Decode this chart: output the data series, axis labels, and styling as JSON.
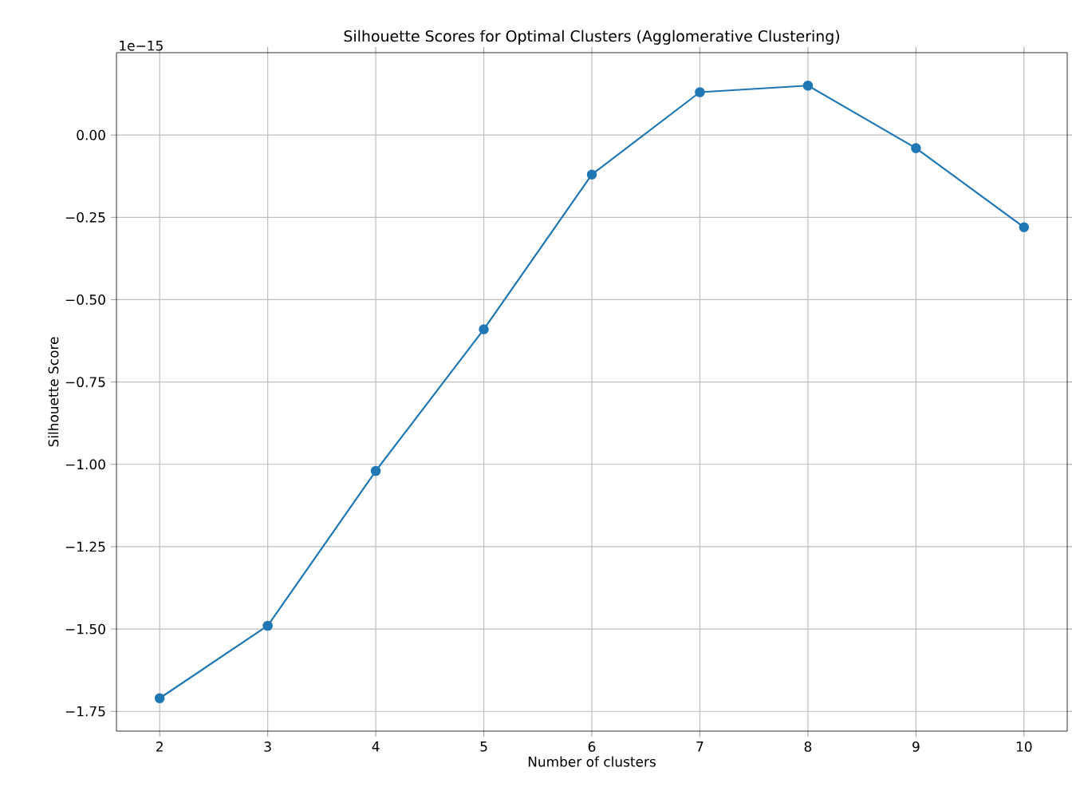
{
  "chart_data": {
    "type": "line",
    "title": "Silhouette Scores for Optimal Clusters (Agglomerative Clustering)",
    "xlabel": "Number of clusters",
    "ylabel": "Silhouette Score",
    "annotations": [
      "1e−15"
    ],
    "x": [
      2,
      3,
      4,
      5,
      6,
      7,
      8,
      9,
      10
    ],
    "series": [
      {
        "color": "#1f77b4",
        "values": [
          -1.71,
          -1.49,
          -1.02,
          -0.59,
          -0.12,
          0.13,
          0.15,
          -0.04,
          -0.28
        ]
      }
    ],
    "xlim": [
      1.6,
      10.4
    ],
    "ylim": [
      -1.81,
      0.25
    ],
    "xticks": [
      2,
      3,
      4,
      5,
      6,
      7,
      8,
      9,
      10
    ],
    "yticks": [
      {
        "value": 0,
        "label": "0.00"
      },
      {
        "value": -0.25,
        "label": "−0.25"
      },
      {
        "value": -0.5,
        "label": "−0.50"
      },
      {
        "value": -0.75,
        "label": "−0.75"
      },
      {
        "value": -1,
        "label": "−1.00"
      },
      {
        "value": -1.25,
        "label": "−1.25"
      },
      {
        "value": -1.5,
        "label": "−1.50"
      },
      {
        "value": -1.75,
        "label": "−1.75"
      }
    ],
    "grid": true,
    "marker": "circle",
    "line_style": "solid"
  }
}
